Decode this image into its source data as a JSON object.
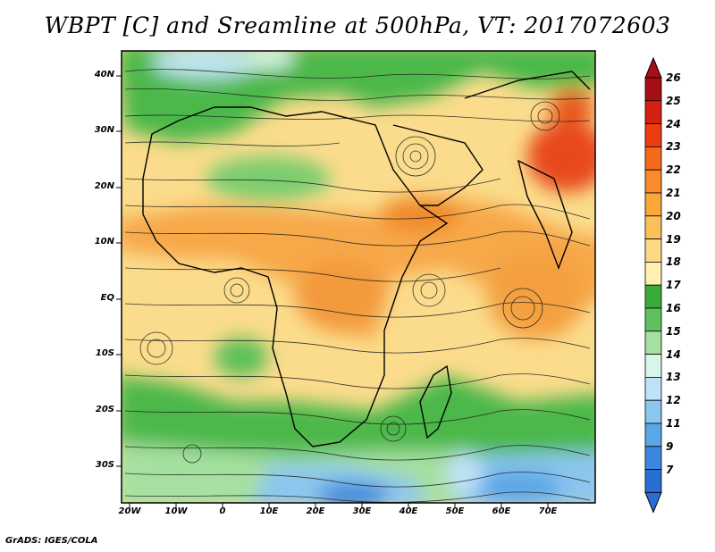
{
  "title": "WBPT [C] and Sreamline at 500hPa, VT: 2017072603",
  "credit": "GrADS: IGES/COLA",
  "lat_labels": [
    "40N",
    "30N",
    "20N",
    "10N",
    "EQ",
    "10S",
    "20S",
    "30S"
  ],
  "lon_labels": [
    "20W",
    "10W",
    "0",
    "10E",
    "20E",
    "30E",
    "40E",
    "50E",
    "60E",
    "70E"
  ],
  "colorbar": {
    "labels": [
      "26",
      "25",
      "24",
      "23",
      "22",
      "21",
      "20",
      "19",
      "18",
      "17",
      "16",
      "15",
      "14",
      "13",
      "12",
      "11",
      "9",
      "7"
    ],
    "colors": [
      "#a50f15",
      "#d42010",
      "#ee3c12",
      "#f56a1a",
      "#f88b2c",
      "#f9a63a",
      "#fbc05a",
      "#fcd887",
      "#fdf0b0",
      "#3aaa3a",
      "#60c060",
      "#a6e0a0",
      "#d8f5e8",
      "#bfe2f8",
      "#8cc6ee",
      "#5aa6e6",
      "#3c88de",
      "#2a6ed4"
    ],
    "top_arrow_color": "#a50f15",
    "bottom_arrow_color": "#2a6ed4"
  }
}
